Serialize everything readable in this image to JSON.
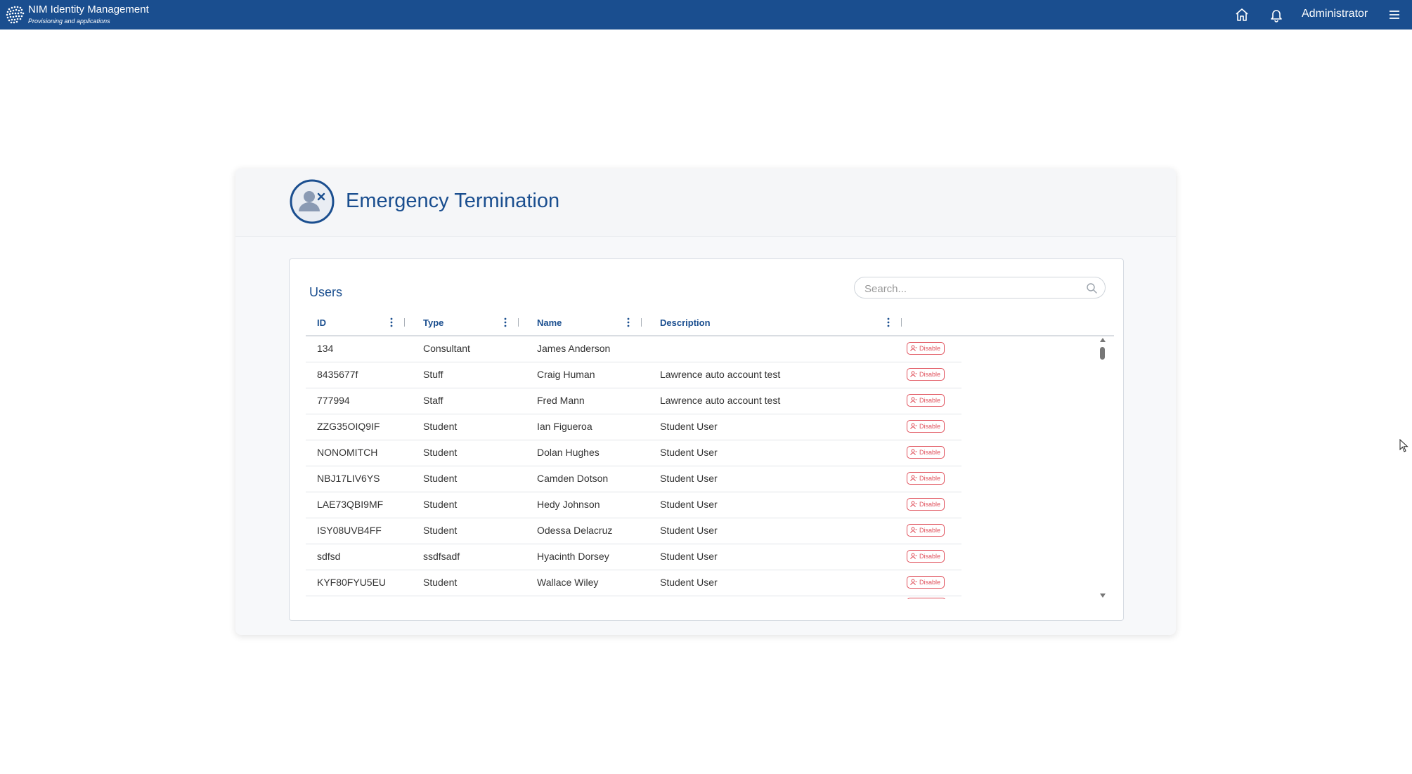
{
  "app": {
    "title": "NIM Identity Management",
    "subtitle": "Provisioning and applications",
    "user": "Administrator",
    "accent_color": "#1a4e8f",
    "danger_color": "#e0505b",
    "icons": [
      "logo-icon",
      "home-icon",
      "bell-icon",
      "menu-icon"
    ]
  },
  "page": {
    "title": "Emergency Termination",
    "icon": "user-remove-icon"
  },
  "users": {
    "title": "Users",
    "search_placeholder": "Search...",
    "columns": [
      "ID",
      "Type",
      "Name",
      "Description"
    ],
    "action_label": "Disable",
    "rows": [
      {
        "id": "134",
        "type": "Consultant",
        "name": "James Anderson",
        "description": ""
      },
      {
        "id": "8435677f",
        "type": "Stuff",
        "name": "Craig Human",
        "description": "Lawrence auto account test"
      },
      {
        "id": "777994",
        "type": "Staff",
        "name": "Fred Mann",
        "description": "Lawrence auto account test"
      },
      {
        "id": "ZZG35OIQ9IF",
        "type": "Student",
        "name": "Ian Figueroa",
        "description": "Student User"
      },
      {
        "id": "NONOMITCH",
        "type": "Student",
        "name": "Dolan Hughes",
        "description": "Student User"
      },
      {
        "id": "NBJ17LIV6YS",
        "type": "Student",
        "name": "Camden Dotson",
        "description": "Student User"
      },
      {
        "id": "LAE73QBI9MF",
        "type": "Student",
        "name": "Hedy Johnson",
        "description": "Student User"
      },
      {
        "id": "ISY08UVB4FF",
        "type": "Student",
        "name": "Odessa Delacruz",
        "description": "Student User"
      },
      {
        "id": "sdfsd",
        "type": "ssdfsadf",
        "name": "Hyacinth Dorsey",
        "description": "Student User"
      },
      {
        "id": "KYF80FYU5EU",
        "type": "Student",
        "name": "Wallace Wiley",
        "description": "Student User"
      }
    ]
  }
}
